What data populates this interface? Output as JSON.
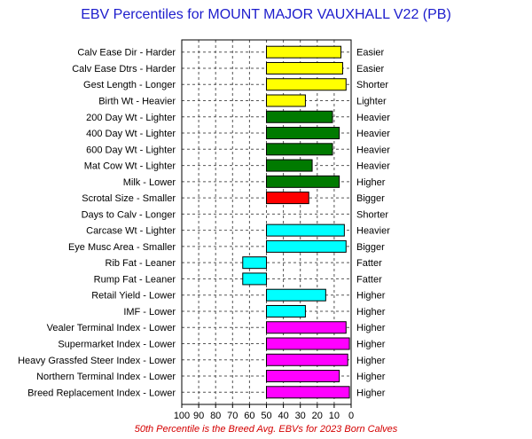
{
  "chart_data": {
    "type": "bar",
    "orientation": "horizontal",
    "title": "EBV Percentiles for MOUNT MAJOR VAUXHALL V22 (PB)",
    "footnote": "50th Percentile is the Breed Avg. EBVs for 2023 Born Calves",
    "xlim": [
      100,
      0
    ],
    "xticks": [
      "100",
      "90",
      "80",
      "70",
      "60",
      "50",
      "40",
      "30",
      "20",
      "10",
      "0"
    ],
    "baseline": 50,
    "grid": true,
    "colors": {
      "yellow": "#ffff00",
      "green": "#007a00",
      "red": "#ff0000",
      "cyan": "#00ffff",
      "magenta": "#ff00ff"
    },
    "rows": [
      {
        "trait": "Calv Ease Dir - Harder",
        "good": "Easier",
        "value": 6,
        "color": "yellow"
      },
      {
        "trait": "Calv Ease Dtrs - Harder",
        "good": "Easier",
        "value": 5,
        "color": "yellow"
      },
      {
        "trait": "Gest Length - Longer",
        "good": "Shorter",
        "value": 3,
        "color": "yellow"
      },
      {
        "trait": "Birth Wt - Heavier",
        "good": "Lighter",
        "value": 27,
        "color": "yellow"
      },
      {
        "trait": "200 Day Wt - Lighter",
        "good": "Heavier",
        "value": 11,
        "color": "green"
      },
      {
        "trait": "400 Day Wt - Lighter",
        "good": "Heavier",
        "value": 7,
        "color": "green"
      },
      {
        "trait": "600 Day Wt - Lighter",
        "good": "Heavier",
        "value": 11,
        "color": "green"
      },
      {
        "trait": "Mat Cow Wt - Lighter",
        "good": "Heavier",
        "value": 23,
        "color": "green"
      },
      {
        "trait": "Milk - Lower",
        "good": "Higher",
        "value": 7,
        "color": "green"
      },
      {
        "trait": "Scrotal Size - Smaller",
        "good": "Bigger",
        "value": 25,
        "color": "red"
      },
      {
        "trait": "Days to Calv - Longer",
        "good": "Shorter",
        "value": 50,
        "color": "none"
      },
      {
        "trait": "Carcase Wt - Lighter",
        "good": "Heavier",
        "value": 4,
        "color": "cyan"
      },
      {
        "trait": "Eye Musc Area - Smaller",
        "good": "Bigger",
        "value": 3,
        "color": "cyan"
      },
      {
        "trait": "Rib Fat - Leaner",
        "good": "Fatter",
        "value": 64,
        "color": "cyan"
      },
      {
        "trait": "Rump Fat - Leaner",
        "good": "Fatter",
        "value": 64,
        "color": "cyan"
      },
      {
        "trait": "Retail Yield - Lower",
        "good": "Higher",
        "value": 15,
        "color": "cyan"
      },
      {
        "trait": "IMF - Lower",
        "good": "Higher",
        "value": 27,
        "color": "cyan"
      },
      {
        "trait": "Vealer Terminal Index - Lower",
        "good": "Higher",
        "value": 3,
        "color": "magenta"
      },
      {
        "trait": "Supermarket Index - Lower",
        "good": "Higher",
        "value": 1,
        "color": "magenta"
      },
      {
        "trait": "Heavy Grassfed Steer Index - Lower",
        "good": "Higher",
        "value": 2,
        "color": "magenta"
      },
      {
        "trait": "Northern Terminal Index - Lower",
        "good": "Higher",
        "value": 7,
        "color": "magenta"
      },
      {
        "trait": "Breed Replacement Index - Lower",
        "good": "Higher",
        "value": 1,
        "color": "magenta"
      }
    ]
  }
}
